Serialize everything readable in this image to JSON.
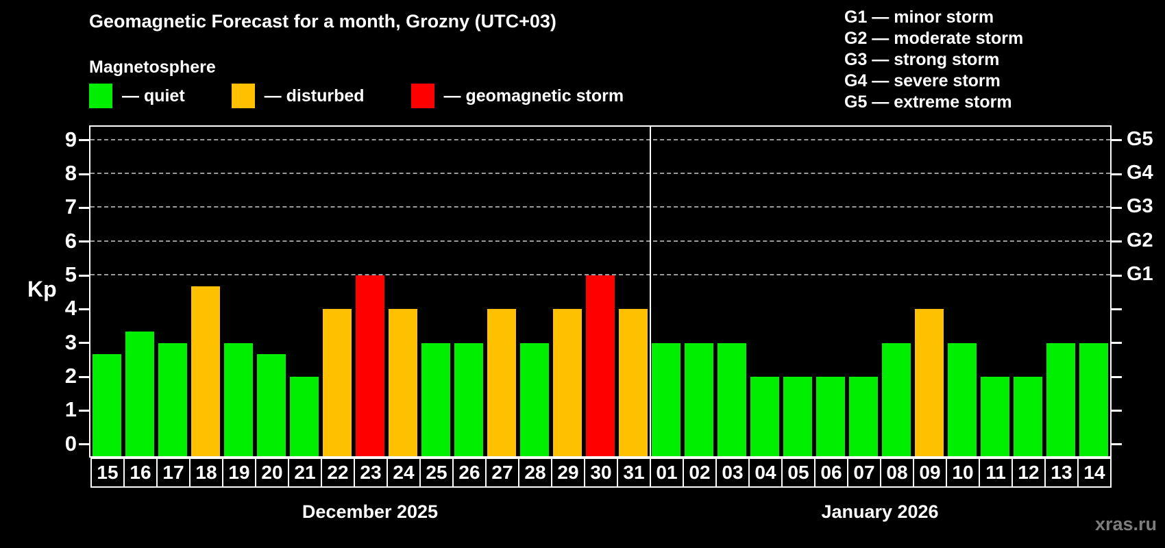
{
  "page": {
    "title": "Geomagnetic Forecast for a month, Grozny (UTC+03)",
    "subtitle": "Magnetosphere",
    "watermark": "xras.ru"
  },
  "legend": {
    "items": [
      {
        "key": "quiet",
        "label": "— quiet"
      },
      {
        "key": "disturbed",
        "label": "— disturbed"
      },
      {
        "key": "storm",
        "label": "— geomagnetic storm"
      }
    ]
  },
  "g_scale_legend": [
    "G1 — minor storm",
    "G2 — moderate storm",
    "G3 — strong storm",
    "G4 — severe storm",
    "G5 — extreme storm"
  ],
  "colors": {
    "quiet": "#00ee00",
    "disturbed": "#ffc000",
    "storm": "#ff0000",
    "axis": "#ffffff",
    "grid": "#9c9c9c",
    "background": "#000000",
    "watermark": "#7d7d7d"
  },
  "chart_data": {
    "type": "bar",
    "title": "Geomagnetic Forecast for a month, Grozny (UTC+03)",
    "ylabel": "Kp",
    "ylim": [
      -0.35,
      9.4
    ],
    "yticks": [
      0,
      1,
      2,
      3,
      4,
      5,
      6,
      7,
      8,
      9
    ],
    "grid": "dashed horizontal lines at Kp 5-9 only",
    "dashed_gridlines_at": [
      5,
      6,
      7,
      8,
      9
    ],
    "right_axis": [
      {
        "kp": 5,
        "label": "G1"
      },
      {
        "kp": 6,
        "label": "G2"
      },
      {
        "kp": 7,
        "label": "G3"
      },
      {
        "kp": 8,
        "label": "G4"
      },
      {
        "kp": 9,
        "label": "G5"
      }
    ],
    "months": [
      {
        "label": "December 2025",
        "bars": [
          {
            "day": "15",
            "kp": 2.67,
            "status": "quiet"
          },
          {
            "day": "16",
            "kp": 3.33,
            "status": "quiet"
          },
          {
            "day": "17",
            "kp": 3.0,
            "status": "quiet"
          },
          {
            "day": "18",
            "kp": 4.67,
            "status": "disturbed"
          },
          {
            "day": "19",
            "kp": 3.0,
            "status": "quiet"
          },
          {
            "day": "20",
            "kp": 2.67,
            "status": "quiet"
          },
          {
            "day": "21",
            "kp": 2.0,
            "status": "quiet"
          },
          {
            "day": "22",
            "kp": 4.0,
            "status": "disturbed"
          },
          {
            "day": "23",
            "kp": 5.0,
            "status": "storm"
          },
          {
            "day": "24",
            "kp": 4.0,
            "status": "disturbed"
          },
          {
            "day": "25",
            "kp": 3.0,
            "status": "quiet"
          },
          {
            "day": "26",
            "kp": 3.0,
            "status": "quiet"
          },
          {
            "day": "27",
            "kp": 4.0,
            "status": "disturbed"
          },
          {
            "day": "28",
            "kp": 3.0,
            "status": "quiet"
          },
          {
            "day": "29",
            "kp": 4.0,
            "status": "disturbed"
          },
          {
            "day": "30",
            "kp": 5.0,
            "status": "storm"
          },
          {
            "day": "31",
            "kp": 4.0,
            "status": "disturbed"
          }
        ]
      },
      {
        "label": "January 2026",
        "bars": [
          {
            "day": "01",
            "kp": 3.0,
            "status": "quiet"
          },
          {
            "day": "02",
            "kp": 3.0,
            "status": "quiet"
          },
          {
            "day": "03",
            "kp": 3.0,
            "status": "quiet"
          },
          {
            "day": "04",
            "kp": 2.0,
            "status": "quiet"
          },
          {
            "day": "05",
            "kp": 2.0,
            "status": "quiet"
          },
          {
            "day": "06",
            "kp": 2.0,
            "status": "quiet"
          },
          {
            "day": "07",
            "kp": 2.0,
            "status": "quiet"
          },
          {
            "day": "08",
            "kp": 3.0,
            "status": "quiet"
          },
          {
            "day": "09",
            "kp": 4.0,
            "status": "disturbed"
          },
          {
            "day": "10",
            "kp": 3.0,
            "status": "quiet"
          },
          {
            "day": "11",
            "kp": 2.0,
            "status": "quiet"
          },
          {
            "day": "12",
            "kp": 2.0,
            "status": "quiet"
          },
          {
            "day": "13",
            "kp": 3.0,
            "status": "quiet"
          },
          {
            "day": "14",
            "kp": 3.0,
            "status": "quiet"
          }
        ]
      }
    ]
  }
}
